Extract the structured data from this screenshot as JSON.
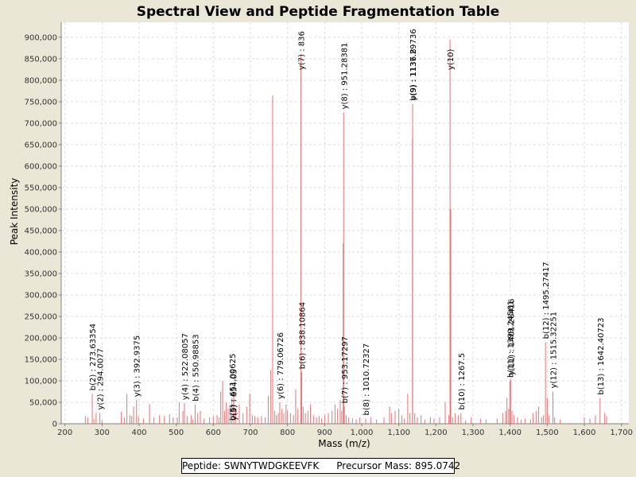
{
  "colors": {
    "background": "#ebe7d6",
    "plot_bg": "#ffffff",
    "peak": "#f07070",
    "grid": "#dcdcdc"
  },
  "chart_data": {
    "type": "spectrum",
    "title": "Spectral View and Peptide Fragmentation Table",
    "xlabel": "Mass (m/z)",
    "ylabel": "Peak Intensity",
    "xlim": [
      190,
      1720
    ],
    "ylim": [
      0,
      935000
    ],
    "xticks": [
      200,
      300,
      400,
      500,
      600,
      700,
      800,
      900,
      1000,
      1100,
      1200,
      1300,
      1400,
      1500,
      1600,
      1700
    ],
    "xtick_labels": [
      "200",
      "300",
      "400",
      "500",
      "600",
      "700",
      "800",
      "900",
      "1,000",
      "1,100",
      "1,200",
      "1,300",
      "1,400",
      "1,500",
      "1,600",
      "1,700"
    ],
    "yticks": [
      0,
      50000,
      100000,
      150000,
      200000,
      250000,
      300000,
      350000,
      400000,
      450000,
      500000,
      550000,
      600000,
      650000,
      700000,
      750000,
      800000,
      850000,
      900000
    ],
    "ytick_labels": [
      "0",
      "50,000",
      "100,000",
      "150,000",
      "200,000",
      "250,000",
      "300,000",
      "350,000",
      "400,000",
      "450,000",
      "500,000",
      "550,000",
      "600,000",
      "650,000",
      "700,000",
      "750,000",
      "800,000",
      "850,000",
      "900,000"
    ],
    "grid": true,
    "peaks": [
      [
        255,
        18000
      ],
      [
        262,
        15000
      ],
      [
        273.6,
        70000
      ],
      [
        278,
        12000
      ],
      [
        284,
        25000
      ],
      [
        294.1,
        25000
      ],
      [
        300,
        8000
      ],
      [
        352,
        28000
      ],
      [
        360,
        15000
      ],
      [
        367,
        70000
      ],
      [
        375,
        20000
      ],
      [
        380,
        18000
      ],
      [
        385,
        40000
      ],
      [
        393,
        55000
      ],
      [
        398,
        18000
      ],
      [
        412,
        12000
      ],
      [
        428,
        45000
      ],
      [
        440,
        15000
      ],
      [
        455,
        20000
      ],
      [
        468,
        18000
      ],
      [
        482,
        22000
      ],
      [
        492,
        15000
      ],
      [
        503,
        15000
      ],
      [
        508,
        50000
      ],
      [
        518,
        30000
      ],
      [
        522.1,
        48000
      ],
      [
        530,
        18000
      ],
      [
        540,
        20000
      ],
      [
        545,
        10000
      ],
      [
        551,
        45000
      ],
      [
        558,
        25000
      ],
      [
        565,
        30000
      ],
      [
        575,
        12000
      ],
      [
        590,
        15000
      ],
      [
        600,
        18000
      ],
      [
        610,
        20000
      ],
      [
        615,
        15000
      ],
      [
        620,
        75000
      ],
      [
        625,
        100000
      ],
      [
        630,
        30000
      ],
      [
        635,
        50000
      ],
      [
        640,
        35000
      ],
      [
        645,
        40000
      ],
      [
        650,
        60000
      ],
      [
        655,
        70000
      ],
      [
        660,
        35000
      ],
      [
        670,
        45000
      ],
      [
        680,
        25000
      ],
      [
        690,
        40000
      ],
      [
        698,
        70000
      ],
      [
        705,
        20000
      ],
      [
        712,
        18000
      ],
      [
        720,
        15000
      ],
      [
        730,
        18000
      ],
      [
        740,
        15000
      ],
      [
        748,
        65000
      ],
      [
        755,
        125000
      ],
      [
        760,
        765000
      ],
      [
        765,
        30000
      ],
      [
        770,
        20000
      ],
      [
        775,
        25000
      ],
      [
        779.1,
        50000
      ],
      [
        785,
        35000
      ],
      [
        790,
        25000
      ],
      [
        796,
        45000
      ],
      [
        800,
        30000
      ],
      [
        808,
        25000
      ],
      [
        816,
        20000
      ],
      [
        822,
        80000
      ],
      [
        828,
        35000
      ],
      [
        836,
        860000
      ],
      [
        838.1,
        120000
      ],
      [
        842,
        40000
      ],
      [
        848,
        25000
      ],
      [
        855,
        30000
      ],
      [
        862,
        45000
      ],
      [
        870,
        20000
      ],
      [
        878,
        15000
      ],
      [
        885,
        18000
      ],
      [
        892,
        12000
      ],
      [
        900,
        20000
      ],
      [
        910,
        25000
      ],
      [
        920,
        30000
      ],
      [
        928,
        45000
      ],
      [
        935,
        35000
      ],
      [
        942,
        55000
      ],
      [
        946,
        30000
      ],
      [
        950,
        420000
      ],
      [
        951.3,
        725000
      ],
      [
        953.2,
        40000
      ],
      [
        958,
        20000
      ],
      [
        965,
        15000
      ],
      [
        975,
        12000
      ],
      [
        985,
        10000
      ],
      [
        995,
        15000
      ],
      [
        1010.7,
        12000
      ],
      [
        1025,
        15000
      ],
      [
        1040,
        10000
      ],
      [
        1060,
        15000
      ],
      [
        1075,
        40000
      ],
      [
        1080,
        25000
      ],
      [
        1090,
        30000
      ],
      [
        1100,
        35000
      ],
      [
        1108,
        20000
      ],
      [
        1115,
        12000
      ],
      [
        1124,
        70000
      ],
      [
        1130,
        25000
      ],
      [
        1136.8,
        665000
      ],
      [
        1137.3,
        745000
      ],
      [
        1143,
        25000
      ],
      [
        1150,
        15000
      ],
      [
        1160,
        20000
      ],
      [
        1170,
        10000
      ],
      [
        1185,
        15000
      ],
      [
        1195,
        12000
      ],
      [
        1210,
        15000
      ],
      [
        1225,
        50000
      ],
      [
        1235,
        20000
      ],
      [
        1238,
        895000
      ],
      [
        1240,
        500000
      ],
      [
        1245,
        15000
      ],
      [
        1252,
        25000
      ],
      [
        1260,
        20000
      ],
      [
        1267.5,
        25000
      ],
      [
        1280,
        8000
      ],
      [
        1295,
        15000
      ],
      [
        1320,
        12000
      ],
      [
        1335,
        10000
      ],
      [
        1365,
        12000
      ],
      [
        1380,
        25000
      ],
      [
        1388,
        30000
      ],
      [
        1391.5,
        60000
      ],
      [
        1396,
        35000
      ],
      [
        1399.2,
        100000
      ],
      [
        1401.3,
        105000
      ],
      [
        1405,
        30000
      ],
      [
        1410,
        20000
      ],
      [
        1420,
        15000
      ],
      [
        1430,
        10000
      ],
      [
        1440,
        12000
      ],
      [
        1455,
        10000
      ],
      [
        1462,
        25000
      ],
      [
        1470,
        30000
      ],
      [
        1477,
        40000
      ],
      [
        1485,
        15000
      ],
      [
        1490,
        20000
      ],
      [
        1495.3,
        190000
      ],
      [
        1500,
        60000
      ],
      [
        1505,
        20000
      ],
      [
        1515.3,
        75000
      ],
      [
        1520,
        15000
      ],
      [
        1535,
        10000
      ],
      [
        1600,
        15000
      ],
      [
        1615,
        12000
      ],
      [
        1630,
        20000
      ],
      [
        1642.4,
        60000
      ],
      [
        1655,
        25000
      ],
      [
        1660,
        18000
      ]
    ],
    "annotations": [
      {
        "x": 273.6,
        "label": "b(2) : 273.63354"
      },
      {
        "x": 294.1,
        "label": "y(2) : 294.0077"
      },
      {
        "x": 392.9,
        "label": "y(3) : 392.9375"
      },
      {
        "x": 522.1,
        "label": "y(4) : 522.08057"
      },
      {
        "x": 551.0,
        "label": "b(4) : 550.98853"
      },
      {
        "x": 651.0,
        "label": "b(5) : 651.00625"
      },
      {
        "x": 654.0,
        "label": "y(5) : 654.05"
      },
      {
        "x": 779.1,
        "label": "y(6) : 779.06726"
      },
      {
        "x": 836.0,
        "label": "y(7) : 836"
      },
      {
        "x": 838.1,
        "label": "b(6) : 838.10864"
      },
      {
        "x": 951.3,
        "label": "y(8) : 951.28381"
      },
      {
        "x": 953.2,
        "label": "b(7) : 953.17297"
      },
      {
        "x": 1010.7,
        "label": "b(8) : 1010.72327"
      },
      {
        "x": 1136.8,
        "label": "b(9) : 1136.8"
      },
      {
        "x": 1137.3,
        "label": "y(9) : 1137.29736"
      },
      {
        "x": 1238.0,
        "label": "y(10)"
      },
      {
        "x": 1267.5,
        "label": "b(10) : 1267.5"
      },
      {
        "x": 1399.2,
        "label": "b(11) : 1399.24561"
      },
      {
        "x": 1401.3,
        "label": "y(11) : 1401.26416"
      },
      {
        "x": 1495.3,
        "label": "b(12) : 1495.27417"
      },
      {
        "x": 1515.3,
        "label": "y(12) : 1515.32251"
      },
      {
        "x": 1642.4,
        "label": "b(13) : 1642.40723"
      }
    ]
  },
  "legend": {
    "peptide": "Peptide: SWNYTWDGKEEVFK",
    "precursor": "Precursor Mass: 895.0742"
  }
}
